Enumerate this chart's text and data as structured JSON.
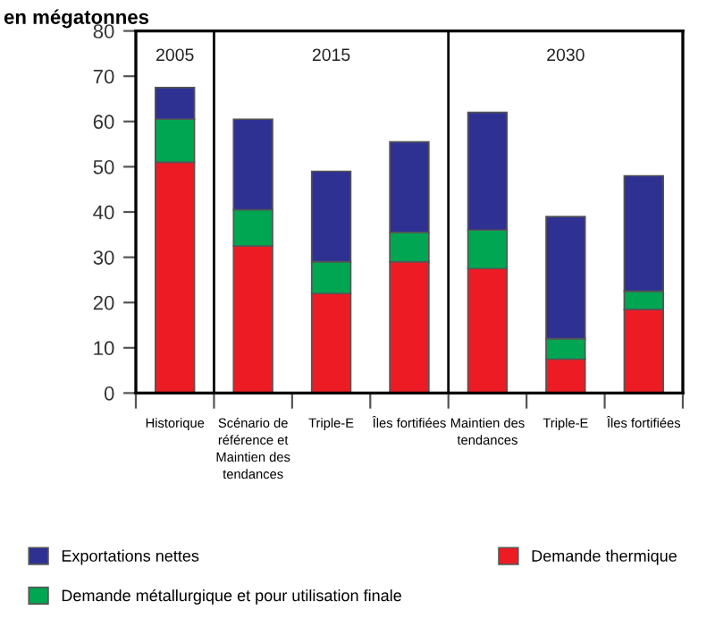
{
  "chart_data": {
    "type": "bar",
    "stacked": true,
    "ylabel": "en mégatonnes",
    "categories": [
      "Historique",
      "Scénario de\nréférence et\nMaintien des\ntendances",
      "Triple-E",
      "Îles fortifiées",
      "Maintien des\ntendances",
      "Triple-E",
      "Îles fortifiées"
    ],
    "series": [
      {
        "name": "Demande thermique",
        "color": "#ed1c24",
        "values": [
          51,
          32.5,
          22,
          29,
          27.5,
          7.5,
          18.5
        ]
      },
      {
        "name": "Demande métallurgique et pour utilisation finale",
        "color": "#00a651",
        "values": [
          9.5,
          8,
          7,
          6.5,
          8.5,
          4.5,
          4
        ]
      },
      {
        "name": "Exportations nettes",
        "color": "#2e3192",
        "values": [
          7,
          20,
          20,
          20,
          26,
          27,
          25.5
        ]
      }
    ],
    "ylim": [
      0,
      80
    ],
    "yticks": [
      0,
      10,
      20,
      30,
      40,
      50,
      60,
      70,
      80
    ],
    "annotations": [
      "2005",
      "2015",
      "2030"
    ],
    "grid": false,
    "legend": "bottom"
  }
}
